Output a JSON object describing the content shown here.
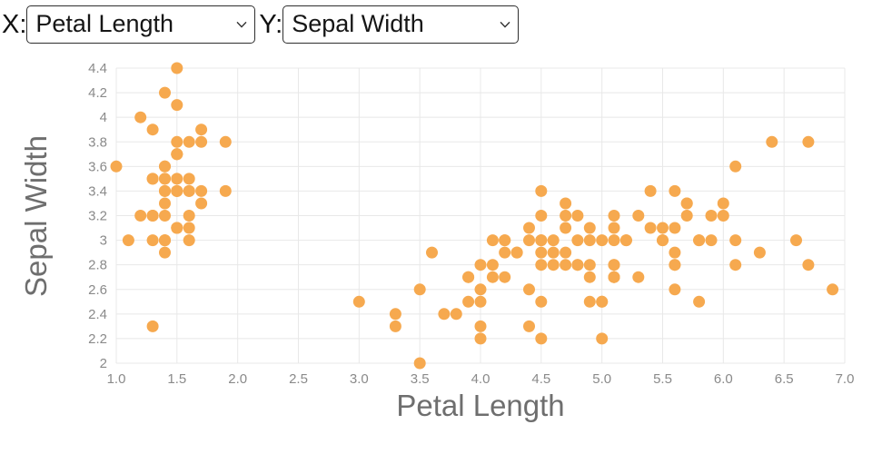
{
  "controls": {
    "x_label": "X:",
    "x_select": {
      "value": "Petal Length"
    },
    "y_label": "Y:",
    "y_select": {
      "value": "Sepal Width"
    }
  },
  "chart_data": {
    "type": "scatter",
    "title": "",
    "xlabel": "Petal Length",
    "ylabel": "Sepal Width",
    "xlim": [
      1.0,
      7.0
    ],
    "ylim": [
      2.0,
      4.4
    ],
    "grid": true,
    "legend_position": "none",
    "marker_color": "#F6A94F",
    "grid_color": "#E8E8E8",
    "tick_color": "#8A8A8A",
    "axis_label_color": "#6E6E6E",
    "x_ticks": {
      "values": [
        1.0,
        1.5,
        2.0,
        2.5,
        3.0,
        3.5,
        4.0,
        4.5,
        5.0,
        5.5,
        6.0,
        6.5,
        7.0
      ],
      "labels": [
        "1.0",
        "1.5",
        "2.0",
        "2.5",
        "3.0",
        "3.5",
        "4.0",
        "4.5",
        "5.0",
        "5.5",
        "6.0",
        "6.5",
        "7.0"
      ]
    },
    "y_ticks": {
      "values": [
        2.0,
        2.2,
        2.4,
        2.6,
        2.8,
        3.0,
        3.2,
        3.4,
        3.6,
        3.8,
        4.0,
        4.2,
        4.4
      ],
      "labels": [
        "2",
        "2.2",
        "2.4",
        "2.6",
        "2.8",
        "3",
        "3.2",
        "3.4",
        "3.6",
        "3.8",
        "4",
        "4.2",
        "4.4"
      ]
    },
    "points": [
      [
        1.4,
        3.5
      ],
      [
        1.4,
        3.0
      ],
      [
        1.3,
        3.2
      ],
      [
        1.5,
        3.1
      ],
      [
        1.4,
        3.6
      ],
      [
        1.7,
        3.9
      ],
      [
        1.4,
        3.4
      ],
      [
        1.5,
        3.4
      ],
      [
        1.4,
        2.9
      ],
      [
        1.5,
        3.1
      ],
      [
        1.5,
        3.7
      ],
      [
        1.6,
        3.4
      ],
      [
        1.4,
        3.0
      ],
      [
        1.1,
        3.0
      ],
      [
        1.2,
        4.0
      ],
      [
        1.5,
        4.4
      ],
      [
        1.3,
        3.9
      ],
      [
        1.4,
        3.5
      ],
      [
        1.7,
        3.8
      ],
      [
        1.5,
        3.8
      ],
      [
        1.7,
        3.4
      ],
      [
        1.5,
        3.7
      ],
      [
        1.0,
        3.6
      ],
      [
        1.7,
        3.3
      ],
      [
        1.9,
        3.4
      ],
      [
        1.6,
        3.0
      ],
      [
        1.6,
        3.4
      ],
      [
        1.5,
        3.5
      ],
      [
        1.4,
        3.4
      ],
      [
        1.6,
        3.2
      ],
      [
        1.6,
        3.1
      ],
      [
        1.5,
        3.4
      ],
      [
        1.5,
        4.1
      ],
      [
        1.4,
        4.2
      ],
      [
        1.5,
        3.1
      ],
      [
        1.2,
        3.2
      ],
      [
        1.3,
        3.5
      ],
      [
        1.4,
        3.6
      ],
      [
        1.3,
        3.0
      ],
      [
        1.5,
        3.4
      ],
      [
        1.3,
        3.5
      ],
      [
        1.3,
        2.3
      ],
      [
        1.3,
        3.2
      ],
      [
        1.6,
        3.5
      ],
      [
        1.9,
        3.8
      ],
      [
        1.4,
        3.0
      ],
      [
        1.6,
        3.8
      ],
      [
        1.4,
        3.2
      ],
      [
        1.5,
        3.7
      ],
      [
        1.4,
        3.3
      ],
      [
        4.7,
        3.2
      ],
      [
        4.5,
        3.2
      ],
      [
        4.9,
        3.1
      ],
      [
        4.0,
        2.3
      ],
      [
        4.6,
        2.8
      ],
      [
        4.5,
        2.8
      ],
      [
        4.7,
        3.3
      ],
      [
        3.3,
        2.4
      ],
      [
        4.6,
        2.9
      ],
      [
        3.9,
        2.7
      ],
      [
        3.5,
        2.0
      ],
      [
        4.2,
        3.0
      ],
      [
        4.0,
        2.2
      ],
      [
        4.7,
        2.9
      ],
      [
        3.6,
        2.9
      ],
      [
        4.4,
        3.1
      ],
      [
        4.5,
        3.0
      ],
      [
        4.1,
        2.7
      ],
      [
        4.5,
        2.2
      ],
      [
        3.9,
        2.5
      ],
      [
        4.8,
        3.2
      ],
      [
        4.0,
        2.8
      ],
      [
        4.9,
        2.5
      ],
      [
        4.7,
        2.8
      ],
      [
        4.3,
        2.9
      ],
      [
        4.4,
        3.0
      ],
      [
        4.8,
        2.8
      ],
      [
        5.0,
        3.0
      ],
      [
        4.5,
        2.9
      ],
      [
        3.5,
        2.6
      ],
      [
        3.8,
        2.4
      ],
      [
        3.7,
        2.4
      ],
      [
        3.9,
        2.7
      ],
      [
        5.1,
        2.7
      ],
      [
        4.5,
        3.0
      ],
      [
        4.5,
        3.4
      ],
      [
        4.7,
        3.1
      ],
      [
        4.4,
        2.3
      ],
      [
        4.1,
        3.0
      ],
      [
        4.0,
        2.5
      ],
      [
        4.4,
        2.6
      ],
      [
        4.6,
        3.0
      ],
      [
        4.0,
        2.6
      ],
      [
        3.3,
        2.3
      ],
      [
        4.2,
        2.7
      ],
      [
        4.2,
        3.0
      ],
      [
        4.2,
        2.9
      ],
      [
        4.3,
        2.9
      ],
      [
        3.0,
        2.5
      ],
      [
        4.1,
        2.8
      ],
      [
        6.0,
        3.3
      ],
      [
        5.1,
        2.7
      ],
      [
        5.9,
        3.0
      ],
      [
        5.6,
        2.9
      ],
      [
        5.8,
        3.0
      ],
      [
        6.6,
        3.0
      ],
      [
        4.5,
        2.5
      ],
      [
        6.3,
        2.9
      ],
      [
        5.8,
        2.5
      ],
      [
        6.1,
        3.6
      ],
      [
        5.1,
        3.2
      ],
      [
        5.3,
        2.7
      ],
      [
        5.5,
        3.0
      ],
      [
        5.0,
        2.5
      ],
      [
        5.1,
        2.8
      ],
      [
        5.3,
        3.2
      ],
      [
        5.5,
        3.0
      ],
      [
        6.7,
        3.8
      ],
      [
        6.9,
        2.6
      ],
      [
        5.0,
        2.2
      ],
      [
        5.7,
        3.2
      ],
      [
        4.9,
        2.8
      ],
      [
        6.7,
        2.8
      ],
      [
        4.9,
        2.7
      ],
      [
        5.7,
        3.3
      ],
      [
        6.0,
        3.2
      ],
      [
        4.8,
        2.8
      ],
      [
        4.9,
        3.0
      ],
      [
        5.6,
        2.8
      ],
      [
        5.8,
        3.0
      ],
      [
        6.1,
        2.8
      ],
      [
        6.4,
        3.8
      ],
      [
        5.6,
        2.8
      ],
      [
        5.1,
        2.8
      ],
      [
        5.6,
        2.6
      ],
      [
        6.1,
        3.0
      ],
      [
        5.6,
        3.4
      ],
      [
        5.5,
        3.1
      ],
      [
        4.8,
        3.0
      ],
      [
        5.4,
        3.1
      ],
      [
        5.6,
        3.1
      ],
      [
        5.1,
        3.1
      ],
      [
        5.1,
        2.7
      ],
      [
        5.9,
        3.2
      ],
      [
        5.7,
        3.3
      ],
      [
        5.2,
        3.0
      ],
      [
        5.0,
        2.5
      ],
      [
        5.2,
        3.0
      ],
      [
        5.4,
        3.4
      ],
      [
        5.1,
        3.0
      ]
    ]
  }
}
